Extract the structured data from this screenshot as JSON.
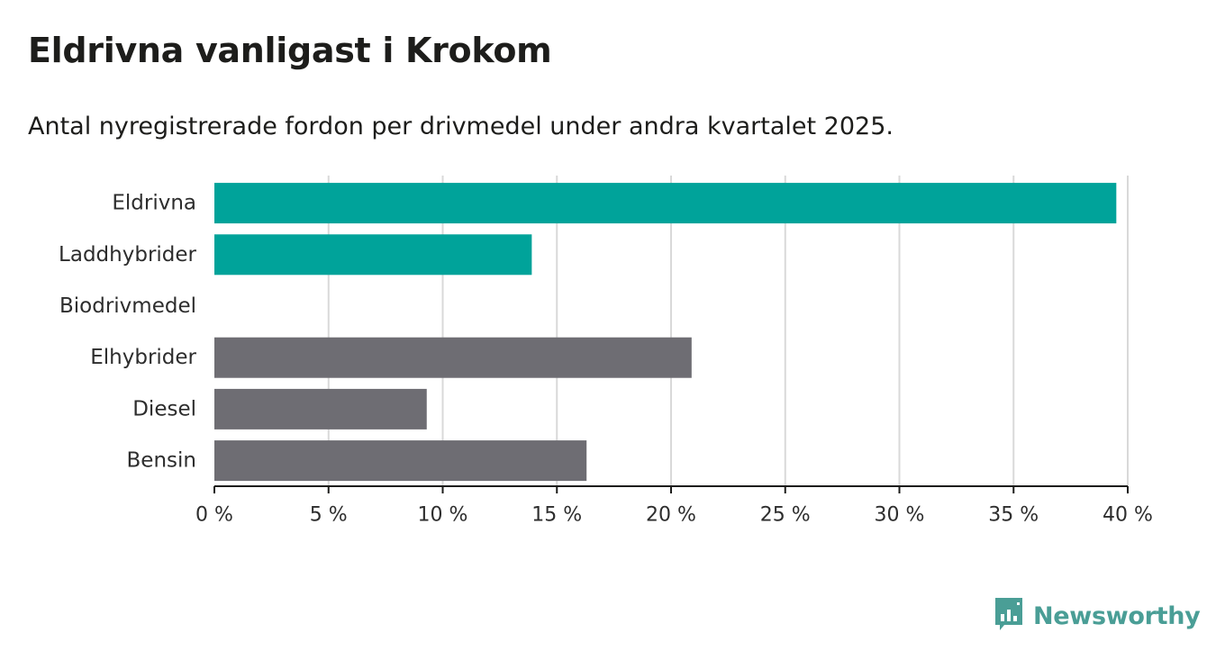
{
  "header": {
    "title": "Eldrivna vanligast i Krokom",
    "subtitle": "Antal nyregistrerade fordon per drivmedel under andra kvartalet 2025."
  },
  "brand": {
    "name": "Newsworthy",
    "color": "#4a9e96",
    "icon": "bar-chart-speech-icon"
  },
  "colors": {
    "highlight": "#00a39a",
    "neutral": "#6e6d73",
    "grid": "#d9d9d9",
    "axis": "#1d1d1b"
  },
  "chart_data": {
    "type": "bar",
    "orientation": "horizontal",
    "categories": [
      "Eldrivna",
      "Laddhybrider",
      "Biodrivmedel",
      "Elhybrider",
      "Diesel",
      "Bensin"
    ],
    "values": [
      39.5,
      13.9,
      0,
      20.9,
      9.3,
      16.3
    ],
    "bar_colors": [
      "#00a39a",
      "#00a39a",
      "#00a39a",
      "#6e6d73",
      "#6e6d73",
      "#6e6d73"
    ],
    "xlim": [
      0,
      40
    ],
    "xticks": [
      0,
      5,
      10,
      15,
      20,
      25,
      30,
      35,
      40
    ],
    "xtick_labels": [
      "0 %",
      "5 %",
      "10 %",
      "15 %",
      "20 %",
      "25 %",
      "30 %",
      "35 %",
      "40 %"
    ],
    "title": "Eldrivna vanligast i Krokom",
    "subtitle": "Antal nyregistrerade fordon per drivmedel under andra kvartalet 2025.",
    "xlabel": "",
    "ylabel": "",
    "grid": "vertical"
  }
}
